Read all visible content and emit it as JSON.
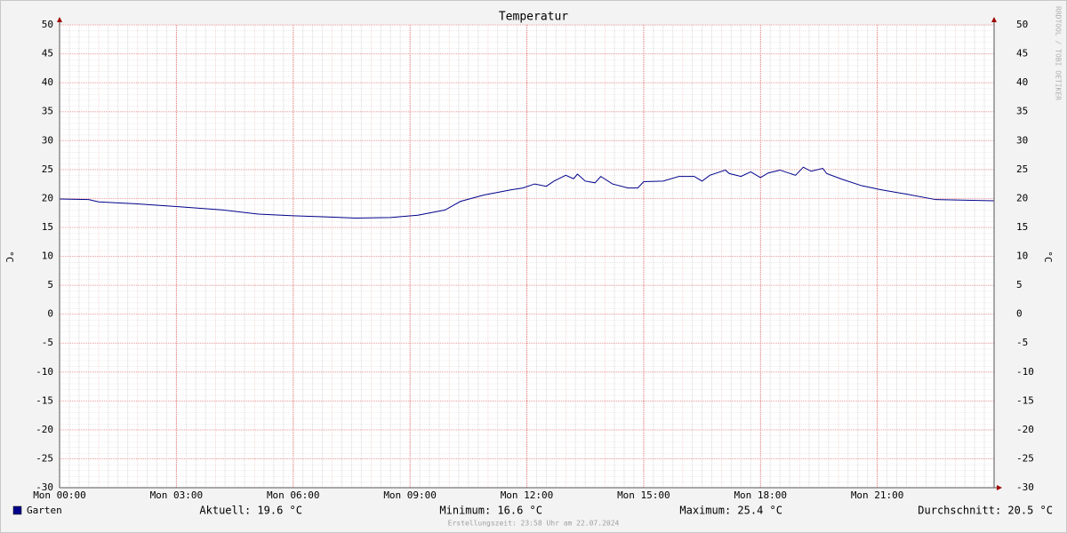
{
  "chart_data": {
    "type": "line",
    "title": "Temperatur",
    "y_label": "°C",
    "watermark": "RRDTOOL / TOBI OETIKER",
    "footer": "Erstellungszeit: 23:58 Uhr am 22.07.2024",
    "xlim": [
      0,
      24
    ],
    "xticks": [
      {
        "value": 0,
        "label": "Mon 00:00"
      },
      {
        "value": 3,
        "label": "Mon 03:00"
      },
      {
        "value": 6,
        "label": "Mon 06:00"
      },
      {
        "value": 9,
        "label": "Mon 09:00"
      },
      {
        "value": 12,
        "label": "Mon 12:00"
      },
      {
        "value": 15,
        "label": "Mon 15:00"
      },
      {
        "value": 18,
        "label": "Mon 18:00"
      },
      {
        "value": 21,
        "label": "Mon 21:00"
      }
    ],
    "ylim": [
      -30,
      50
    ],
    "yticks": [
      -30,
      -25,
      -20,
      -15,
      -10,
      -5,
      0,
      5,
      10,
      15,
      20,
      25,
      30,
      35,
      40,
      45,
      50
    ],
    "grid": true,
    "x": [
      0,
      0.75,
      1,
      1.9,
      3,
      4.2,
      5.1,
      6,
      6.9,
      7.6,
      8.5,
      9.2,
      9.9,
      10.3,
      10.9,
      11.6,
      11.9,
      12.2,
      12.5,
      12.7,
      13.0,
      13.2,
      13.3,
      13.5,
      13.75,
      13.9,
      14.2,
      14.6,
      14.85,
      15,
      15.5,
      15.9,
      16.3,
      16.5,
      16.7,
      17.1,
      17.2,
      17.5,
      17.75,
      18,
      18.2,
      18.5,
      18.9,
      19.1,
      19.3,
      19.6,
      19.7,
      20.1,
      20.6,
      21.1,
      21.7,
      22.5,
      23.3,
      24
    ],
    "series": [
      {
        "name": "Garten",
        "color": "#00008b",
        "values": [
          19.9,
          19.8,
          19.4,
          19.1,
          18.6,
          18.0,
          17.3,
          17.0,
          16.8,
          16.6,
          16.7,
          17.1,
          18.0,
          19.5,
          20.6,
          21.5,
          21.8,
          22.5,
          22.1,
          23.0,
          24.0,
          23.4,
          24.2,
          23.0,
          22.7,
          23.8,
          22.5,
          21.8,
          21.8,
          22.9,
          23.0,
          23.8,
          23.8,
          23.0,
          24.0,
          24.9,
          24.3,
          23.8,
          24.6,
          23.6,
          24.4,
          24.9,
          24.0,
          25.4,
          24.7,
          25.2,
          24.3,
          23.3,
          22.2,
          21.5,
          20.8,
          19.8,
          19.7,
          19.6
        ]
      }
    ],
    "stats": [
      "Aktuell: 19.6 °C",
      "Minimum: 16.6 °C",
      "Maximum: 25.4 °C",
      "Durchschnitt: 20.5 °C"
    ]
  }
}
